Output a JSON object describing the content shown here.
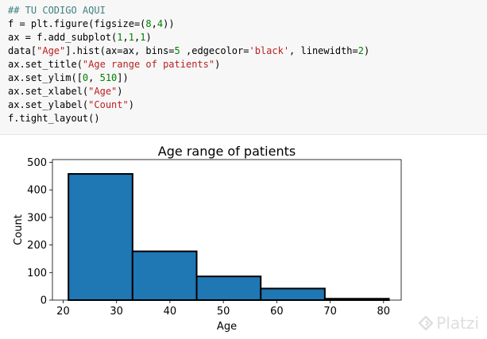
{
  "code_cell": {
    "lines": [
      [
        {
          "t": "## TU CODIGO AQUI",
          "c": "comment"
        }
      ],
      [
        {
          "t": "f = plt.figure(figsize=("
        },
        {
          "t": "8",
          "c": "num"
        },
        {
          "t": ","
        },
        {
          "t": "4",
          "c": "num"
        },
        {
          "t": "))"
        }
      ],
      [
        {
          "t": "ax = f.add_subplot("
        },
        {
          "t": "1",
          "c": "num"
        },
        {
          "t": ","
        },
        {
          "t": "1",
          "c": "num"
        },
        {
          "t": ","
        },
        {
          "t": "1",
          "c": "num"
        },
        {
          "t": ")"
        }
      ],
      [
        {
          "t": "data["
        },
        {
          "t": "\"Age\"",
          "c": "str"
        },
        {
          "t": "].hist(ax=ax, bins="
        },
        {
          "t": "5",
          "c": "num"
        },
        {
          "t": " ,edgecolor="
        },
        {
          "t": "'black'",
          "c": "str"
        },
        {
          "t": ", linewidth="
        },
        {
          "t": "2",
          "c": "num"
        },
        {
          "t": ")"
        }
      ],
      [
        {
          "t": "ax.set_title("
        },
        {
          "t": "\"Age range of patients\"",
          "c": "str"
        },
        {
          "t": ")"
        }
      ],
      [
        {
          "t": "ax.set_ylim(["
        },
        {
          "t": "0",
          "c": "num"
        },
        {
          "t": ", "
        },
        {
          "t": "510",
          "c": "num"
        },
        {
          "t": "])"
        }
      ],
      [
        {
          "t": "ax.set_xlabel("
        },
        {
          "t": "\"Age\"",
          "c": "str"
        },
        {
          "t": ")"
        }
      ],
      [
        {
          "t": "ax.set_ylabel("
        },
        {
          "t": "\"Count\"",
          "c": "str"
        },
        {
          "t": ")"
        }
      ],
      [
        {
          "t": "f.tight_layout()"
        }
      ]
    ]
  },
  "chart_data": {
    "type": "bar",
    "title": "Age range of patients",
    "xlabel": "Age",
    "ylabel": "Count",
    "xlim": [
      18.0,
      83.3
    ],
    "ylim": [
      0,
      510
    ],
    "bins": [
      {
        "x0": 21,
        "x1": 33,
        "value": 458
      },
      {
        "x0": 33,
        "x1": 45,
        "value": 177
      },
      {
        "x0": 45,
        "x1": 57,
        "value": 86
      },
      {
        "x0": 57,
        "x1": 69,
        "value": 42
      },
      {
        "x0": 69,
        "x1": 81,
        "value": 5
      }
    ],
    "xticks": [
      20,
      30,
      40,
      50,
      60,
      70,
      80
    ],
    "yticks": [
      0,
      100,
      200,
      300,
      400,
      500
    ],
    "bar_color": "#1f77b4",
    "edge_color": "#000000",
    "grid": false
  },
  "watermark": {
    "text": "Platzi",
    "icon": "platzi-logo-icon"
  }
}
